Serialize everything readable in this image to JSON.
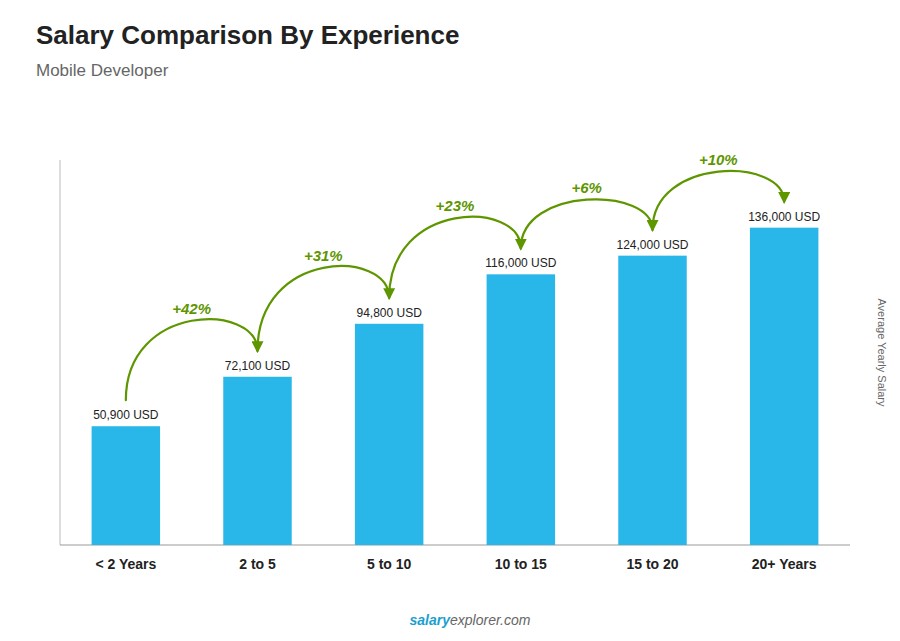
{
  "chart_data": {
    "type": "bar",
    "title": "Salary Comparison By Experience",
    "subtitle": "Mobile Developer",
    "y_label": "Average Yearly Salary",
    "categories": [
      "< 2 Years",
      "2 to 5",
      "5 to 10",
      "10 to 15",
      "15 to 20",
      "20+ Years"
    ],
    "values": [
      50900,
      72100,
      94800,
      116000,
      124000,
      136000
    ],
    "value_labels": [
      "50,900 USD",
      "72,100 USD",
      "94,800 USD",
      "116,000 USD",
      "124,000 USD",
      "136,000 USD"
    ],
    "data_labels": true,
    "annotations": [
      "+42%",
      "+31%",
      "+23%",
      "+6%",
      "+10%"
    ],
    "footer": [
      "salary",
      "explorer.com"
    ],
    "color": "#29b6e8",
    "ylim": [
      0,
      165000
    ],
    "grid": false,
    "tick_labels": "x"
  }
}
